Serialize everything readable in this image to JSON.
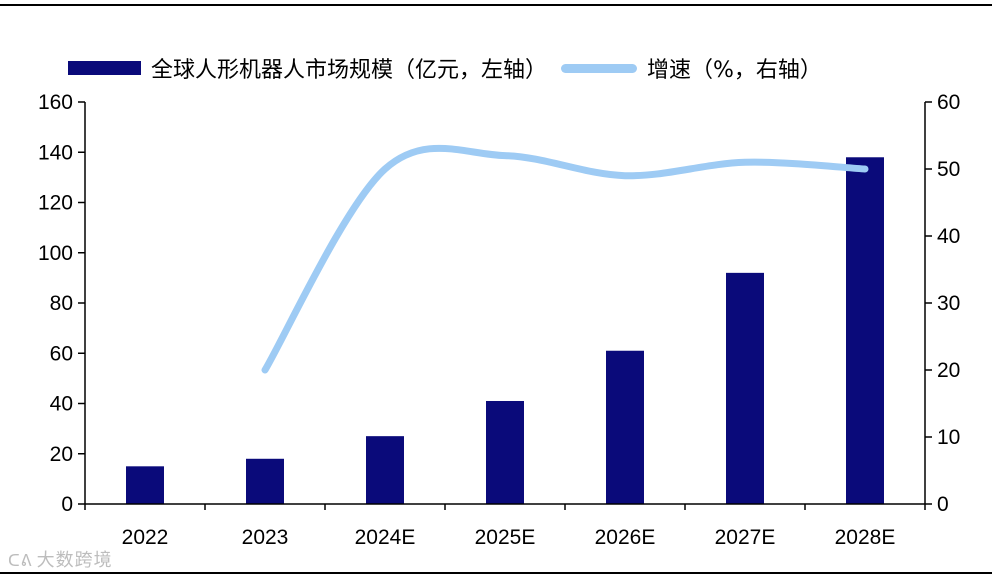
{
  "legend": {
    "bar_label": "全球人形机器人市场规模（亿元，左轴）",
    "line_label": "增速（%，右轴）"
  },
  "watermark": {
    "logo": "ᑕᕕ",
    "text": "大数跨境"
  },
  "colors": {
    "bar": "#0a0a7a",
    "line": "#9ecbf4",
    "axis": "#000000"
  },
  "chart_data": {
    "type": "bar",
    "categories": [
      "2022",
      "2023",
      "2024E",
      "2025E",
      "2026E",
      "2027E",
      "2028E"
    ],
    "series": [
      {
        "name": "全球人形机器人市场规模（亿元，左轴）",
        "type": "bar",
        "axis": "left",
        "values": [
          15,
          18,
          27,
          41,
          61,
          92,
          138
        ]
      },
      {
        "name": "增速（%，右轴）",
        "type": "line",
        "axis": "right",
        "values": [
          null,
          20,
          50,
          52,
          49,
          51,
          50
        ]
      }
    ],
    "left_axis": {
      "range": [
        0,
        160
      ],
      "ticks": [
        0,
        20,
        40,
        60,
        80,
        100,
        120,
        140,
        160
      ]
    },
    "right_axis": {
      "range": [
        0,
        60
      ],
      "ticks": [
        0,
        10,
        20,
        30,
        40,
        50,
        60
      ]
    },
    "grid": false,
    "legend_position": "top"
  }
}
